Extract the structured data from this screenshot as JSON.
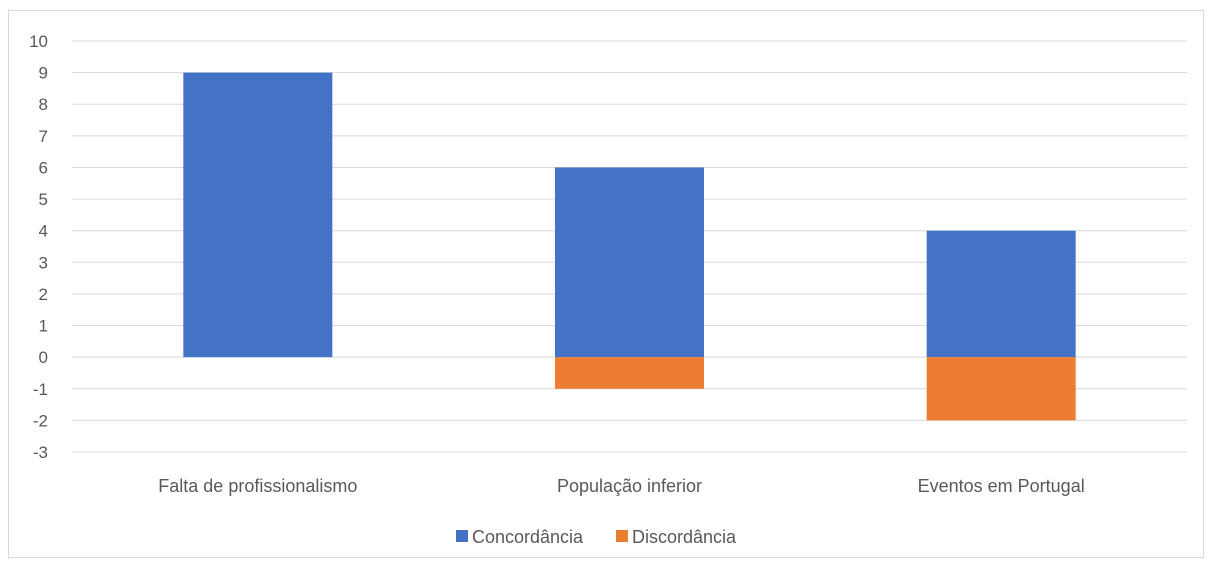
{
  "chart_data": {
    "type": "bar",
    "stacked": true,
    "categories": [
      "Falta de profissionalismo",
      "População inferior",
      "Eventos em Portugal"
    ],
    "series": [
      {
        "name": "Concordância",
        "values": [
          9,
          6,
          4
        ],
        "color": "#4472c4"
      },
      {
        "name": "Discordância",
        "values": [
          0,
          -1,
          -2
        ],
        "color": "#ed7d31"
      }
    ],
    "ylim": [
      -3,
      10
    ],
    "yticks": [
      10,
      9,
      8,
      7,
      6,
      5,
      4,
      3,
      2,
      1,
      0,
      -1,
      -2,
      -3
    ],
    "grid": true,
    "legend": "bottom",
    "title": "",
    "xlabel": "",
    "ylabel": ""
  }
}
